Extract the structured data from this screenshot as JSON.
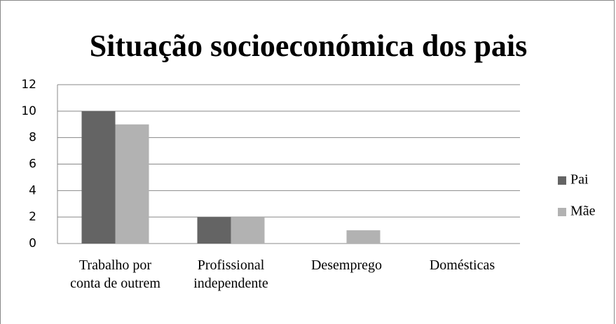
{
  "chart_data": {
    "type": "bar",
    "title": "Situação socioeconómica dos pais",
    "categories": [
      "Trabalho por conta de outrem",
      "Profissional independente",
      "Desemprego",
      "Domésticas"
    ],
    "series": [
      {
        "name": "Pai",
        "color": "#646464",
        "values": [
          10,
          2,
          0,
          0
        ]
      },
      {
        "name": "Mãe",
        "color": "#b2b2b2",
        "values": [
          9,
          2,
          1,
          0
        ]
      }
    ],
    "ylim": [
      0,
      12
    ],
    "yticks": [
      0,
      2,
      4,
      6,
      8,
      10,
      12
    ],
    "grid": true,
    "legend": "right"
  }
}
